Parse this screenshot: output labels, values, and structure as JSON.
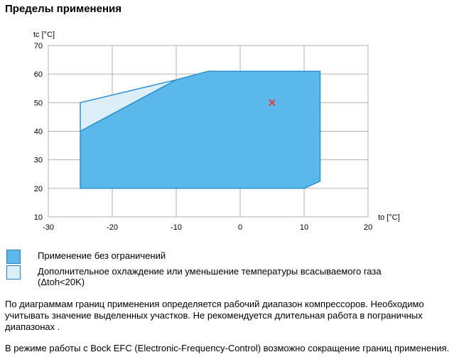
{
  "page_title": "Пределы применения",
  "legend": [
    {
      "label": "Применение без ограничений",
      "color": "#5bb8ea"
    },
    {
      "label_line1": "Дополнительное охлаждение или уменьшение температуры всасываемого газа",
      "label_line2": "(Δtoh<20K)",
      "color": "#dceff9"
    }
  ],
  "notes": {
    "p1_line1": "По диаграммам границ применения определяется рабочий диапазон компрессоров. Необходимо",
    "p1_line2": "учитывать значение выделенных участков. Не рекомендуется длительная работа в пограничных",
    "p1_line3": "диапазонах .",
    "p2": "В режиме работы с Bock EFC (Electronic-Frequency-Control) возможно сокращение границ применения."
  },
  "chart_data": {
    "type": "area",
    "xlabel": "to [°C]",
    "ylabel": "tc [°C]",
    "xlim": [
      -30,
      20
    ],
    "ylim": [
      10,
      70
    ],
    "xticks": [
      -30,
      -20,
      -10,
      0,
      10,
      20
    ],
    "yticks": [
      10,
      20,
      30,
      40,
      50,
      60,
      70
    ],
    "grid": true,
    "series": [
      {
        "name": "Применение без ограничений",
        "color": "#5bb8ea",
        "stroke": "#2b8fd0",
        "points": [
          [
            -25,
            20
          ],
          [
            -25,
            40
          ],
          [
            -10,
            58
          ],
          [
            -5,
            61
          ],
          [
            12.5,
            61
          ],
          [
            12.5,
            22.5
          ],
          [
            10,
            20
          ]
        ]
      },
      {
        "name": "Дополнительное охлаждение или уменьшение температуры всасываемого газа (Δtoh<20K)",
        "color": "#dceff9",
        "stroke": "#2b8fd0",
        "points": [
          [
            -25,
            40
          ],
          [
            -25,
            50
          ],
          [
            -10,
            58
          ]
        ]
      }
    ],
    "markers": [
      {
        "x": 5,
        "y": 50,
        "symbol": "x",
        "color": "#e53935"
      }
    ]
  }
}
